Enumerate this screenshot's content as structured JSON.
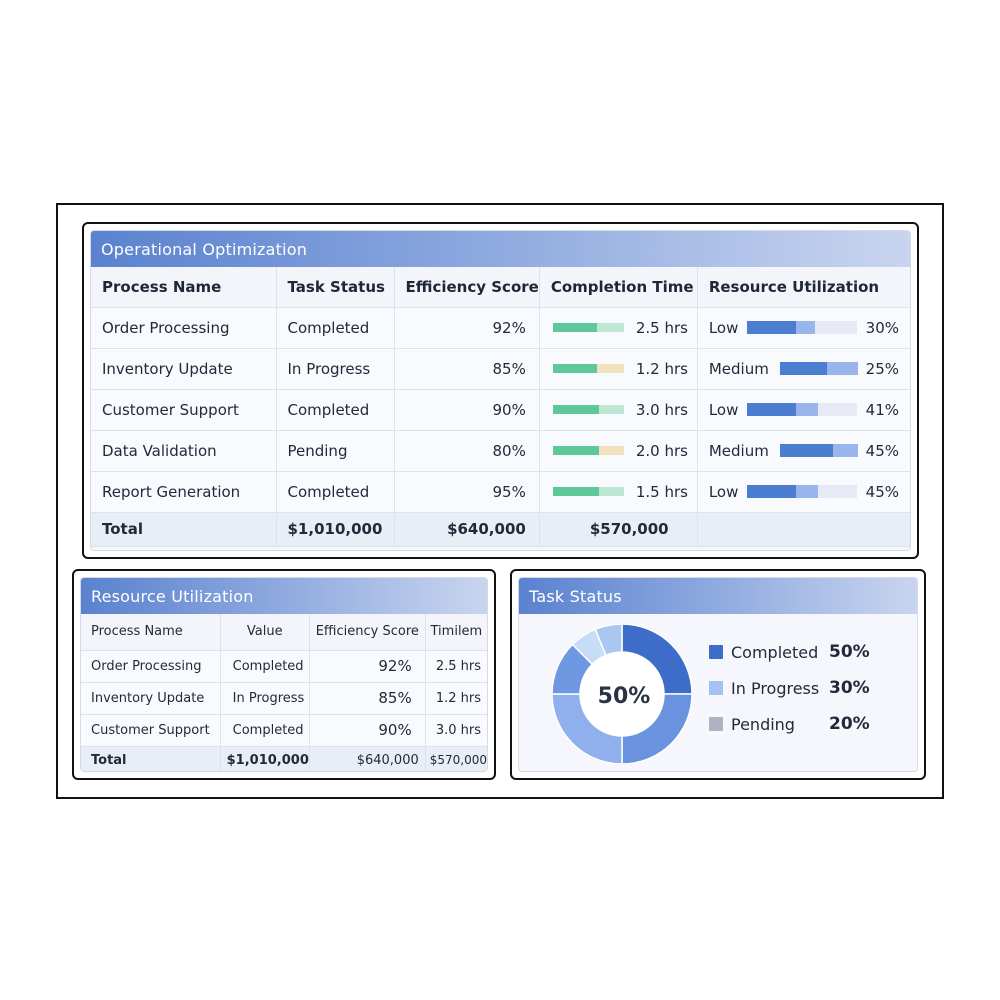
{
  "main": {
    "title": "Operational Optimization",
    "columns": [
      "Process Name",
      "Task Status",
      "Efficiency Score",
      "Completion Time",
      "Resource Utilization"
    ],
    "rows": [
      {
        "name": "Order Processing",
        "status": "Completed",
        "score": "92%",
        "time": "2.5 hrs",
        "time_fill": 0.62,
        "time_tone": "green",
        "level": "Low",
        "util": "30%",
        "util_a": 0.45,
        "util_b": 0.17
      },
      {
        "name": "Inventory Update",
        "status": "In Progress",
        "score": "85%",
        "time": "1.2 hrs",
        "time_fill": 0.62,
        "time_tone": "amber",
        "level": "Medium",
        "util": "25%",
        "util_a": 0.6,
        "util_b": 0.4
      },
      {
        "name": "Customer Support",
        "status": "Completed",
        "score": "90%",
        "time": "3.0 hrs",
        "time_fill": 0.65,
        "time_tone": "green",
        "level": "Low",
        "util": "41%",
        "util_a": 0.45,
        "util_b": 0.2
      },
      {
        "name": "Data Validation",
        "status": "Pending",
        "score": "80%",
        "time": "2.0 hrs",
        "time_fill": 0.65,
        "time_tone": "amber",
        "level": "Medium",
        "util": "45%",
        "util_a": 0.68,
        "util_b": 0.32
      },
      {
        "name": "Report Generation",
        "status": "Completed",
        "score": "95%",
        "time": "1.5 hrs",
        "time_fill": 0.65,
        "time_tone": "green",
        "level": "Low",
        "util": "45%",
        "util_a": 0.45,
        "util_b": 0.2
      }
    ],
    "total": {
      "label": "Total",
      "status": "$1,010,000",
      "score": "$640,000",
      "time": "$570,000"
    }
  },
  "small": {
    "title": "Resource Utilization",
    "columns": [
      "Process Name",
      "Value",
      "Efficiency Score",
      "Timilem"
    ],
    "rows": [
      {
        "name": "Order Processing",
        "value": "Completed",
        "score": "92%",
        "time": "2.5 hrs"
      },
      {
        "name": "Inventory Update",
        "value": "In Progress",
        "score": "85%",
        "time": "1.2 hrs"
      },
      {
        "name": "Customer Support",
        "value": "Completed",
        "score": "90%",
        "time": "3.0 hrs"
      }
    ],
    "total": {
      "label": "Total",
      "value": "$1,010,000",
      "score": "$640,000",
      "time": "$570,000"
    }
  },
  "donut": {
    "title": "Task Status",
    "center": "50%",
    "legend": [
      {
        "label": "Completed",
        "value": "50%",
        "color": "#3d6cc9"
      },
      {
        "label": "In Progress",
        "value": "30%",
        "color": "#a4c1f3"
      },
      {
        "label": "Pending",
        "value": "20%",
        "color": "#aeb3bf"
      }
    ]
  },
  "colors": {
    "green": "#5ec89a",
    "green_light": "#bfe6d3",
    "amber_light": "#f1e2bd"
  }
}
